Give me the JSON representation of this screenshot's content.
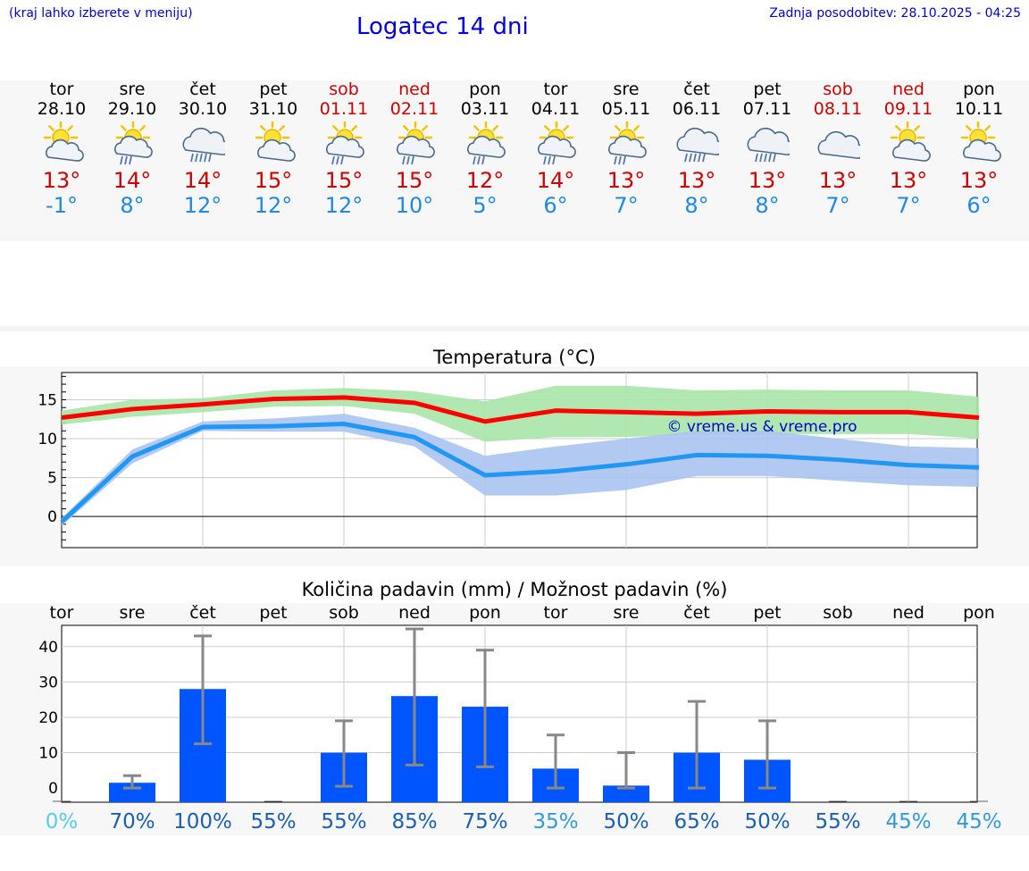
{
  "header": {
    "menu_hint": "(kraj lahko izberete v meniju)",
    "title": "Logatec 14 dni",
    "updated": "Zadnja posodobitev: 28.10.2025 - 04:25"
  },
  "days": [
    {
      "name": "tor",
      "date": "28.10",
      "weekend": false,
      "icon": "sun-cloud-icon",
      "tmax": "13°",
      "tmin": "-1°"
    },
    {
      "name": "sre",
      "date": "29.10",
      "weekend": false,
      "icon": "sun-cloud-rain-icon",
      "tmax": "14°",
      "tmin": "8°"
    },
    {
      "name": "čet",
      "date": "30.10",
      "weekend": false,
      "icon": "cloud-rain-icon",
      "tmax": "14°",
      "tmin": "12°"
    },
    {
      "name": "pet",
      "date": "31.10",
      "weekend": false,
      "icon": "sun-cloud-icon",
      "tmax": "15°",
      "tmin": "12°"
    },
    {
      "name": "sob",
      "date": "01.11",
      "weekend": true,
      "icon": "sun-cloud-rain-icon",
      "tmax": "15°",
      "tmin": "12°"
    },
    {
      "name": "ned",
      "date": "02.11",
      "weekend": true,
      "icon": "sun-cloud-rain-icon",
      "tmax": "15°",
      "tmin": "10°"
    },
    {
      "name": "pon",
      "date": "03.11",
      "weekend": false,
      "icon": "sun-cloud-rain-icon",
      "tmax": "12°",
      "tmin": "5°"
    },
    {
      "name": "tor",
      "date": "04.11",
      "weekend": false,
      "icon": "sun-cloud-rain-icon",
      "tmax": "14°",
      "tmin": "6°"
    },
    {
      "name": "sre",
      "date": "05.11",
      "weekend": false,
      "icon": "sun-cloud-rain-icon",
      "tmax": "13°",
      "tmin": "7°"
    },
    {
      "name": "čet",
      "date": "06.11",
      "weekend": false,
      "icon": "cloud-rain-icon",
      "tmax": "13°",
      "tmin": "8°"
    },
    {
      "name": "pet",
      "date": "07.11",
      "weekend": false,
      "icon": "cloud-rain-icon",
      "tmax": "13°",
      "tmin": "8°"
    },
    {
      "name": "sob",
      "date": "08.11",
      "weekend": true,
      "icon": "cloud-icon",
      "tmax": "13°",
      "tmin": "7°"
    },
    {
      "name": "ned",
      "date": "09.11",
      "weekend": true,
      "icon": "sun-cloud-icon",
      "tmax": "13°",
      "tmin": "7°"
    },
    {
      "name": "pon",
      "date": "10.11",
      "weekend": false,
      "icon": "sun-cloud-icon",
      "tmax": "13°",
      "tmin": "6°"
    }
  ],
  "colors": {
    "max_line": "#ff0000",
    "max_band": "#a8e6a8",
    "min_line": "#2196f3",
    "min_band": "#aac4f0",
    "bar": "#0055ff",
    "errbar": "#888888",
    "watermark": "#0000cc"
  },
  "chart_data": [
    {
      "type": "line",
      "title": "Temperatura (°C)",
      "watermark": "© vreme.us & vreme.pro",
      "ylim": [
        -4,
        18.5
      ],
      "yticks": [
        0,
        5,
        10,
        15
      ],
      "x": [
        0,
        1,
        2,
        3,
        4,
        5,
        6,
        7,
        8,
        9,
        10,
        11,
        12,
        13
      ],
      "series": [
        {
          "name": "max",
          "values": [
            12.7,
            13.8,
            14.4,
            15.1,
            15.3,
            14.6,
            12.2,
            13.6,
            13.4,
            13.2,
            13.5,
            13.4,
            13.4,
            12.7
          ],
          "band_low": [
            11.8,
            12.8,
            13.4,
            14.1,
            14.2,
            13.2,
            9.6,
            10.2,
            10.2,
            10.6,
            10.6,
            10.6,
            10.6,
            10.0
          ],
          "band_high": [
            13.6,
            15.0,
            15.2,
            16.2,
            16.5,
            16.1,
            14.8,
            16.8,
            16.8,
            16.2,
            16.3,
            16.2,
            16.2,
            15.4
          ]
        },
        {
          "name": "min",
          "values": [
            -0.7,
            7.7,
            11.5,
            11.6,
            11.9,
            10.2,
            5.3,
            5.8,
            6.7,
            7.9,
            7.8,
            7.3,
            6.6,
            6.3
          ],
          "band_low": [
            -1.2,
            6.8,
            11.0,
            10.9,
            10.9,
            9.0,
            2.7,
            2.7,
            3.4,
            5.2,
            5.2,
            4.6,
            4.0,
            3.8
          ],
          "band_high": [
            -0.2,
            8.6,
            12.2,
            12.6,
            13.2,
            11.4,
            7.8,
            9.0,
            10.0,
            11.0,
            11.0,
            10.0,
            9.0,
            8.8
          ]
        }
      ]
    },
    {
      "type": "bar",
      "title": "Količina padavin (mm) / Možnost padavin (%)",
      "categories": [
        "tor",
        "sre",
        "čet",
        "pet",
        "sob",
        "ned",
        "pon",
        "tor",
        "sre",
        "čet",
        "pet",
        "sob",
        "ned",
        "pon"
      ],
      "ylim": [
        -4,
        46
      ],
      "yticks": [
        0,
        10,
        20,
        30,
        40
      ],
      "values": [
        0,
        1.5,
        28,
        0,
        10,
        26,
        23,
        5.5,
        0.7,
        10,
        8,
        0,
        0,
        0
      ],
      "err_low": [
        0,
        0,
        12.5,
        0,
        0.5,
        6.5,
        6,
        0,
        0,
        0,
        0,
        0,
        0,
        0
      ],
      "err_high": [
        0,
        3.5,
        43,
        0,
        19,
        45,
        39,
        15,
        10,
        24.5,
        19,
        0,
        0,
        0
      ],
      "probability": [
        "0%",
        "70%",
        "100%",
        "55%",
        "55%",
        "85%",
        "75%",
        "35%",
        "50%",
        "65%",
        "50%",
        "55%",
        "45%",
        "45%"
      ],
      "prob_colors": [
        "#55ccee",
        "#1a5fb4",
        "#1a5fb4",
        "#1a5fb4",
        "#1a5fb4",
        "#1a5fb4",
        "#1a5fb4",
        "#3399dd",
        "#1a5fb4",
        "#1a5fb4",
        "#1a5fb4",
        "#1a5fb4",
        "#3399dd",
        "#3399dd"
      ]
    }
  ]
}
